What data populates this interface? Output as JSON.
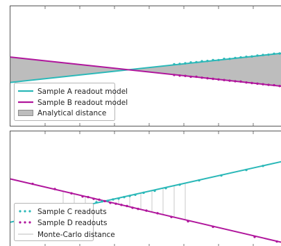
{
  "colors": {
    "series_a": "#2bb8b8",
    "series_b": "#b0169c",
    "shade": "#bdbdbd",
    "frame": "#555555"
  },
  "chart_data": [
    {
      "type": "line",
      "panel": "top",
      "x_range": [
        0,
        10
      ],
      "y_range": [
        -2,
        2
      ],
      "grid": false,
      "legend_position": "bottom-left",
      "series": [
        {
          "name": "Sample A readout model",
          "style": "line",
          "x": [
            0,
            10
          ],
          "y": [
            -0.55,
            0.45
          ]
        },
        {
          "name": "Sample B readout model",
          "style": "line",
          "x": [
            0,
            10
          ],
          "y": [
            0.3,
            -0.7
          ]
        }
      ],
      "shaded_area": {
        "name": "Analytical distance",
        "between": [
          "Sample A readout model",
          "Sample B readout model"
        ]
      },
      "scatter_points": {
        "series_a": {
          "x": [
            5.9,
            6.1,
            6.3,
            6.5,
            6.7,
            6.9,
            7.1,
            7.3,
            7.5,
            7.7,
            7.9,
            8.1,
            8.3,
            8.5,
            8.7,
            8.9,
            9.1,
            9.3,
            9.5,
            9.7
          ],
          "y": [
            0.06,
            0.07,
            0.09,
            0.12,
            0.13,
            0.16,
            0.17,
            0.2,
            0.2,
            0.24,
            0.24,
            0.27,
            0.29,
            0.31,
            0.32,
            0.35,
            0.37,
            0.38,
            0.41,
            0.42
          ]
        },
        "series_b": {
          "x": [
            5.9,
            6.1,
            6.3,
            6.5,
            6.7,
            6.9,
            7.1,
            7.3,
            7.5,
            7.7,
            7.9,
            8.1,
            8.3,
            8.5,
            8.7,
            8.9,
            9.1,
            9.3,
            9.5,
            9.7
          ],
          "y": [
            -0.3,
            -0.32,
            -0.33,
            -0.36,
            -0.36,
            -0.39,
            -0.41,
            -0.43,
            -0.45,
            -0.47,
            -0.49,
            -0.51,
            -0.52,
            -0.55,
            -0.57,
            -0.59,
            -0.61,
            -0.63,
            -0.64,
            -0.67
          ]
        }
      }
    },
    {
      "type": "scatter",
      "panel": "bottom",
      "x_range": [
        0,
        10
      ],
      "y_range": [
        -2,
        2
      ],
      "grid": false,
      "legend_position": "bottom-left",
      "series": [
        {
          "name": "Sample C readouts",
          "style": "points",
          "x": [
            0.5,
            1.4,
            1.9,
            2.3,
            2.6,
            2.9,
            3.1,
            3.3,
            3.5,
            3.7,
            3.9,
            4.1,
            4.3,
            4.5,
            4.8,
            5.2,
            5.6,
            6.1,
            6.8,
            7.6,
            8.5,
            9.1
          ],
          "y": [
            -1.04,
            -0.85,
            -0.73,
            -0.64,
            -0.58,
            -0.53,
            -0.46,
            -0.43,
            -0.41,
            -0.36,
            -0.33,
            -0.28,
            -0.24,
            -0.2,
            -0.13,
            -0.06,
            0.03,
            0.15,
            0.3,
            0.47,
            0.66,
            0.8
          ]
        },
        {
          "name": "Sample D readouts",
          "style": "points",
          "x": [
            0.8,
            1.6,
            2.2,
            2.6,
            2.8,
            3.0,
            3.2,
            3.4,
            3.6,
            3.8,
            4.0,
            4.2,
            4.4,
            4.6,
            4.9,
            5.3,
            5.8,
            6.4,
            7.3,
            8.8,
            9.6
          ],
          "y": [
            0.18,
            -0.0,
            -0.15,
            -0.26,
            -0.28,
            -0.34,
            -0.37,
            -0.42,
            -0.48,
            -0.51,
            -0.55,
            -0.59,
            -0.65,
            -0.69,
            -0.75,
            -0.84,
            -0.97,
            -1.12,
            -1.31,
            -1.66,
            -1.82
          ]
        }
      ],
      "fit_lines": {
        "series_c": {
          "x": [
            0,
            10
          ],
          "y": [
            -1.15,
            1.0
          ]
        },
        "series_d": {
          "x": [
            0,
            10
          ],
          "y": [
            0.35,
            -1.9
          ]
        }
      },
      "distance_segments": {
        "name": "Monte-Carlo distance",
        "x": [
          1.9,
          2.3,
          2.7,
          3.1,
          3.5,
          3.9,
          4.3,
          4.7,
          5.1,
          5.5,
          5.9,
          6.3
        ]
      }
    }
  ]
}
